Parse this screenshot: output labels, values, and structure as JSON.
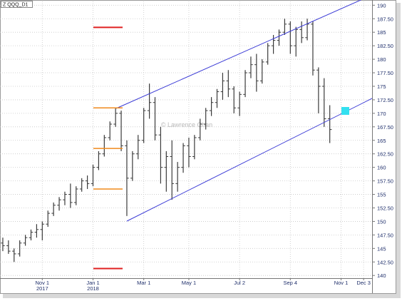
{
  "chart_data": {
    "type": "ohlc",
    "title": "Z QQQ_D1",
    "watermark": "© Lawrence Chan",
    "categories": [
      null,
      null,
      null,
      null,
      null,
      null,
      null,
      "Nov 1\n2017",
      null,
      null,
      null,
      null,
      null,
      null,
      null,
      null,
      "Jan 1\n2018",
      null,
      null,
      null,
      null,
      null,
      null,
      null,
      null,
      "Mar 1",
      null,
      null,
      null,
      null,
      null,
      null,
      null,
      "May 1",
      null,
      null,
      null,
      null,
      null,
      null,
      null,
      null,
      "Jul 2",
      null,
      null,
      null,
      null,
      null,
      null,
      null,
      null,
      "Sep 4",
      null,
      null,
      null,
      null,
      null,
      null,
      null,
      null,
      "Nov 1",
      null,
      null,
      null,
      "Dec 3",
      null
    ],
    "open": [
      146,
      145.5,
      144.5,
      144,
      146,
      147,
      148,
      148.5,
      149.5,
      151.5,
      153,
      154,
      155,
      153.5,
      156,
      157.5,
      157,
      160,
      162.5,
      165.5,
      168,
      170,
      164,
      158,
      162.5,
      165,
      170.5,
      172,
      166,
      160,
      162,
      157,
      160,
      164,
      162,
      165.5,
      168,
      170.5,
      172,
      174,
      176,
      174.5,
      171,
      173.5,
      177.5,
      179,
      176,
      179.5,
      182.5,
      183.5,
      185,
      186.5,
      182.5,
      185.5,
      184,
      186.5,
      178,
      175,
      169,
      null,
      null,
      null,
      null,
      null,
      null,
      null
    ],
    "high": [
      147,
      146.5,
      145,
      146.5,
      147.5,
      148.5,
      149.5,
      150,
      152,
      153.5,
      154.5,
      155.5,
      157,
      156.5,
      158,
      158.5,
      160.5,
      163,
      166,
      168.5,
      171,
      170.5,
      165,
      163,
      166,
      171,
      175.5,
      173,
      167.5,
      163,
      165,
      161,
      164.5,
      165.5,
      166,
      169,
      171,
      173,
      174.5,
      177.5,
      178,
      175,
      174,
      178,
      180.5,
      181,
      180,
      183,
      184.5,
      185.5,
      187.5,
      187,
      186,
      187,
      187.5,
      187,
      178.5,
      176.5,
      171.5,
      null,
      null,
      null,
      null,
      null,
      null,
      null
    ],
    "low": [
      144.5,
      144,
      142.5,
      143.5,
      145.5,
      146.5,
      147,
      146.5,
      149,
      151,
      152,
      153,
      152.5,
      153,
      155.5,
      156,
      156.5,
      159.5,
      162,
      165,
      167.5,
      163,
      151,
      157.5,
      161.5,
      164.5,
      169,
      165,
      157,
      155.5,
      154,
      155.5,
      159,
      160,
      161.5,
      165,
      167,
      169.5,
      171,
      172.5,
      173,
      170,
      169.5,
      173,
      176.5,
      174,
      175.5,
      179,
      181,
      182.5,
      184.5,
      181,
      180.5,
      183,
      183.5,
      177,
      170,
      167.5,
      164.5,
      null,
      null,
      null,
      null,
      null,
      null,
      null
    ],
    "close": [
      145.5,
      144.5,
      144,
      146,
      147,
      148,
      148.5,
      149.5,
      151.5,
      153,
      154,
      155,
      153.5,
      156,
      157.5,
      157,
      160,
      162.5,
      165.5,
      168,
      170,
      164,
      158,
      162.5,
      165,
      170.5,
      172,
      166,
      160,
      162,
      157,
      160,
      164,
      162,
      165.5,
      168,
      170.5,
      172,
      174,
      176,
      174.5,
      171,
      173.5,
      177.5,
      179,
      176,
      179.5,
      182.5,
      183.5,
      185,
      186.5,
      182.5,
      185.5,
      184,
      186.5,
      178,
      175,
      169,
      167,
      null,
      null,
      null,
      null,
      null,
      null,
      null
    ],
    "color": "#3a3a3a",
    "ylim": [
      139.5,
      190.7
    ],
    "yticks": [
      140,
      {
        "value": 142.5,
        "label": "142.50"
      },
      145,
      {
        "value": 147.5,
        "label": "147.50"
      },
      150,
      {
        "value": 152.5,
        "label": "152.50"
      },
      155,
      {
        "value": 157.5,
        "label": "157.50"
      },
      160,
      {
        "value": 162.5,
        "label": "162.50"
      },
      165,
      {
        "value": 167.5,
        "label": "167.50"
      },
      170,
      {
        "value": 172.5,
        "label": "172.50"
      },
      175,
      {
        "value": 177.5,
        "label": "177.50"
      },
      180,
      {
        "value": 182.5,
        "label": "182.50"
      },
      185,
      {
        "value": 187.5,
        "label": "187.50"
      },
      190
    ],
    "grid": true
  }
}
